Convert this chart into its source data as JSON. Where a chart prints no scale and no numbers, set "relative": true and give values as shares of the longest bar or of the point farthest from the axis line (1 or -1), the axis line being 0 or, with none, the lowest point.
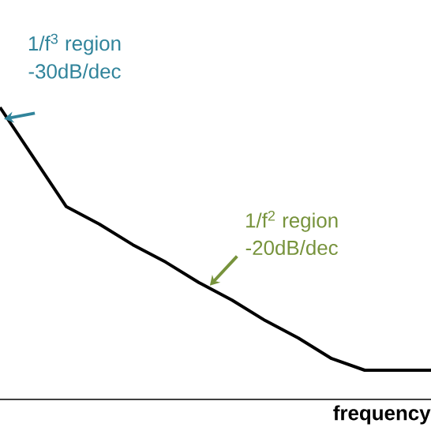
{
  "chart_data": {
    "type": "line",
    "relative": true,
    "xlabel": "frequency",
    "color": "#000000",
    "categories": [
      null,
      null,
      null,
      null,
      null,
      null,
      null,
      null,
      null,
      null,
      null,
      null,
      null,
      null
    ],
    "values": [
      1,
      0.83,
      0.66,
      0.6,
      0.53,
      0.47,
      0.4,
      0.34,
      0.27,
      0.21,
      0.14,
      0.1,
      0.1,
      0.1
    ],
    "annotations": [
      "1/f$^{3}$ region",
      "-30dB/dec",
      "1/f$^{2}$ region",
      "-20dB/dec"
    ]
  }
}
